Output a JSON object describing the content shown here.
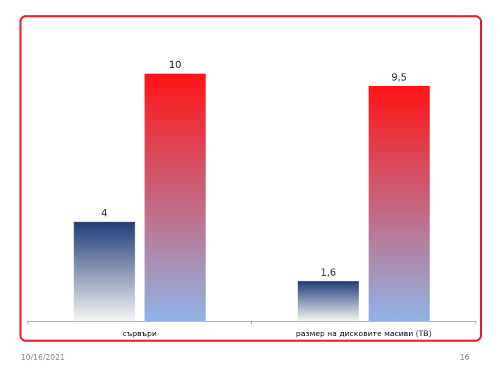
{
  "chart_data": {
    "type": "bar",
    "categories": [
      "сървъри",
      "размер на дисковите масиви (TB)"
    ],
    "series": [
      {
        "values": [
          4,
          1.6
        ],
        "value_labels": [
          "4",
          "1,6"
        ],
        "color_top": "#1f3d78",
        "color_bottom": "#f4f4f4"
      },
      {
        "values": [
          10,
          9.5
        ],
        "value_labels": [
          "10",
          "9,5"
        ],
        "color_top": "#ff1414",
        "color_bottom": "#8fb4e6"
      }
    ],
    "ylim": [
      0,
      10
    ],
    "grid": false,
    "legend": "none"
  },
  "footer": {
    "date": "10/16/2021",
    "page": "16"
  },
  "colors": {
    "frame": "#e8262d",
    "axis": "#888888"
  }
}
